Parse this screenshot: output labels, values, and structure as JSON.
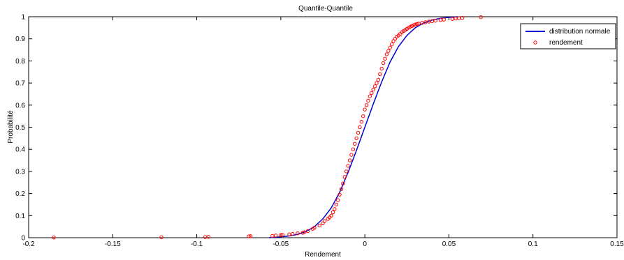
{
  "chart_data": {
    "type": "scatter",
    "title": "Quantile-Quantile",
    "xlabel": "Rendement",
    "ylabel": "Probabilité",
    "xlim": [
      -0.2,
      0.15
    ],
    "ylim": [
      0,
      1
    ],
    "xticks": [
      -0.2,
      -0.15,
      -0.1,
      -0.05,
      0,
      0.05,
      0.1,
      0.15
    ],
    "xtick_labels": [
      "-0.2",
      "-0.15",
      "-0.1",
      "-0.05",
      "0",
      "0.05",
      "0.1",
      "0.15"
    ],
    "yticks": [
      0,
      0.1,
      0.2,
      0.3,
      0.4,
      0.5,
      0.6,
      0.7,
      0.8,
      0.9,
      1
    ],
    "ytick_labels": [
      "0",
      "0.1",
      "0.2",
      "0.3",
      "0.4",
      "0.5",
      "0.6",
      "0.7",
      "0.8",
      "0.9",
      "1"
    ],
    "grid": false,
    "legend_position": "top-right",
    "series": [
      {
        "name": "distribution normale",
        "kind": "line",
        "color": "#0000cc",
        "x": [
          -0.057,
          -0.05,
          -0.045,
          -0.04,
          -0.035,
          -0.03,
          -0.025,
          -0.02,
          -0.015,
          -0.01,
          -0.005,
          0.0,
          0.005,
          0.01,
          0.015,
          0.02,
          0.025,
          0.03,
          0.035,
          0.04,
          0.045,
          0.05,
          0.055
        ],
        "y": [
          0.0,
          0.004,
          0.008,
          0.015,
          0.028,
          0.05,
          0.085,
          0.135,
          0.205,
          0.295,
          0.395,
          0.5,
          0.605,
          0.705,
          0.795,
          0.865,
          0.915,
          0.95,
          0.972,
          0.985,
          0.993,
          0.997,
          1.0
        ]
      },
      {
        "name": "rendement",
        "kind": "scatter",
        "color": "#ff0000",
        "x": [
          -0.185,
          -0.121,
          -0.095,
          -0.093,
          -0.069,
          -0.068,
          -0.055,
          -0.053,
          -0.05,
          -0.049,
          -0.045,
          -0.043,
          -0.04,
          -0.037,
          -0.036,
          -0.034,
          -0.031,
          -0.03,
          -0.027,
          -0.025,
          -0.024,
          -0.022,
          -0.021,
          -0.02,
          -0.019,
          -0.018,
          -0.017,
          -0.016,
          -0.015,
          -0.014,
          -0.013,
          -0.012,
          -0.011,
          -0.01,
          -0.009,
          -0.008,
          -0.007,
          -0.006,
          -0.005,
          -0.004,
          -0.003,
          -0.002,
          -0.001,
          0.0,
          0.001,
          0.002,
          0.003,
          0.004,
          0.005,
          0.006,
          0.007,
          0.008,
          0.009,
          0.01,
          0.011,
          0.012,
          0.013,
          0.014,
          0.015,
          0.016,
          0.017,
          0.018,
          0.019,
          0.02,
          0.021,
          0.022,
          0.023,
          0.024,
          0.025,
          0.026,
          0.027,
          0.028,
          0.029,
          0.03,
          0.031,
          0.032,
          0.034,
          0.036,
          0.038,
          0.04,
          0.042,
          0.045,
          0.047,
          0.052,
          0.054,
          0.056,
          0.058,
          0.069
        ],
        "y": [
          0.001,
          0.002,
          0.003,
          0.004,
          0.006,
          0.007,
          0.008,
          0.01,
          0.012,
          0.013,
          0.015,
          0.017,
          0.02,
          0.022,
          0.025,
          0.03,
          0.04,
          0.045,
          0.055,
          0.065,
          0.075,
          0.085,
          0.092,
          0.1,
          0.115,
          0.13,
          0.15,
          0.17,
          0.195,
          0.22,
          0.245,
          0.275,
          0.3,
          0.325,
          0.35,
          0.375,
          0.4,
          0.425,
          0.45,
          0.475,
          0.5,
          0.525,
          0.55,
          0.58,
          0.6,
          0.62,
          0.64,
          0.655,
          0.67,
          0.685,
          0.7,
          0.715,
          0.74,
          0.765,
          0.79,
          0.81,
          0.83,
          0.845,
          0.86,
          0.875,
          0.89,
          0.9,
          0.91,
          0.915,
          0.922,
          0.93,
          0.935,
          0.94,
          0.945,
          0.95,
          0.955,
          0.958,
          0.962,
          0.965,
          0.967,
          0.969,
          0.972,
          0.975,
          0.978,
          0.98,
          0.982,
          0.985,
          0.987,
          0.99,
          0.992,
          0.993,
          0.995,
          0.998
        ]
      }
    ]
  }
}
